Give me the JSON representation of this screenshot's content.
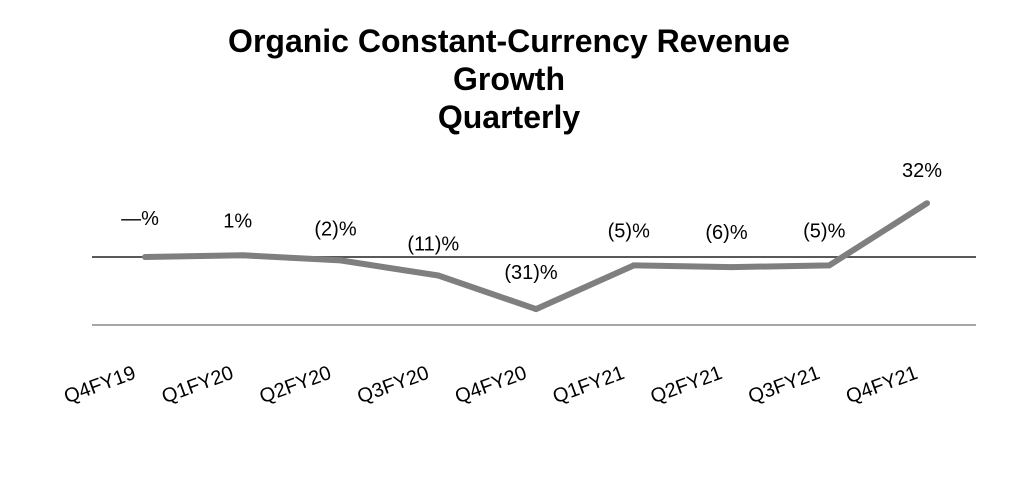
{
  "chart_data": {
    "type": "line",
    "title_lines": [
      "Organic Constant-Currency Revenue",
      "Growth",
      "Quarterly"
    ],
    "xlabel": "",
    "ylabel": "",
    "categories": [
      "Q4FY19",
      "Q1FY20",
      "Q2FY20",
      "Q3FY20",
      "Q4FY20",
      "Q1FY21",
      "Q2FY21",
      "Q3FY21",
      "Q4FY21"
    ],
    "series": [
      {
        "values": [
          0,
          1,
          -2,
          -11,
          -31,
          -5,
          -6,
          -5,
          32
        ],
        "data_labels": [
          "—%",
          "1%",
          "(2)%",
          "(11)%",
          "(31)%",
          "(5)%",
          "(6)%",
          "(5)%",
          "32%"
        ],
        "color": "#7f7f7f"
      }
    ],
    "ylim": [
      -40,
      40
    ],
    "reference_lines": [
      0,
      -40
    ],
    "grid": false,
    "legend": "none",
    "axis_line_color": "#595959",
    "baseline_color": "#a6a6a6"
  }
}
